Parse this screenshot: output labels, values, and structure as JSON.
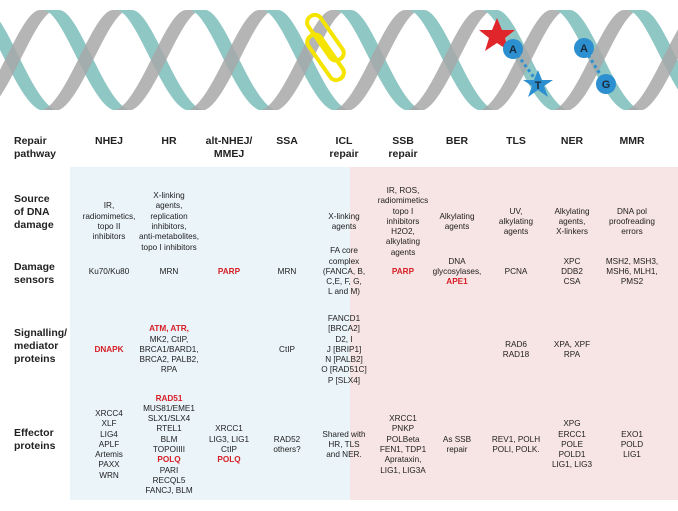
{
  "helix": {
    "colors": {
      "teal": "#8fc7c5",
      "grey": "#a8a8a8",
      "yellow": "#f5e400",
      "star": "#e1262b",
      "bubble": "#2b8fd0"
    },
    "lesion_icons": [
      "yellow-chain-icon",
      "red-star-icon",
      "blue-star-icon"
    ],
    "bases_left": {
      "top": "A",
      "bottom": "T"
    },
    "bases_right": {
      "top": "A",
      "bottom": "G"
    }
  },
  "header": {
    "row_label": "Repair\npathway",
    "columns": [
      "NHEJ",
      "HR",
      "alt-NHEJ/\nMMEJ",
      "SSA",
      "ICL\nrepair",
      "SSB\nrepair",
      "BER",
      "TLS",
      "NER",
      "MMR"
    ]
  },
  "rows": [
    {
      "label": "Source\nof DNA\ndamage",
      "cells": [
        "IR,\nradiomimetics,\ntopo II\ninhibitors",
        "X-linking\nagents,\nreplication\ninhibitors,\nanti-metabolites,\ntopo I inhibitors",
        "",
        "",
        "X-linking\nagents",
        "IR, ROS,\nradiomimetics\ntopo I\ninhibitors\nH2O2,\nalkylating\nagents",
        "Alkylating\nagents",
        "UV,\nalkylating\nagents",
        "Alkylating\nagents,\nX-linkers",
        "DNA pol\nproofreading\nerrors"
      ]
    },
    {
      "label": "Damage\nsensors",
      "cells": [
        "Ku70/Ku80",
        "MRN",
        "PARP",
        "MRN",
        "FA core\ncomplex\n(FANCA, B,\nC,E, F, G,\nL and M)",
        "PARP",
        "DNA\nglycosylases,\nAPE1",
        "PCNA",
        "XPC\nDDB2\nCSA",
        "MSH2, MSH3,\nMSH6, MLH1,\nPMS2"
      ]
    },
    {
      "label": "Signalling/\nmediator\nproteins",
      "cells": [
        "DNAPK",
        "ATM, ATR,\nMK2, CtIP,\nBRCA1/BARD1,\nBRCA2, PALB2,\nRPA",
        "",
        "CtIP",
        "FANCD1\n[BRCA2]\nD2, I\nJ [BRIP1]\nN [PALB2]\nO [RAD51C]\nP [SLX4]",
        "",
        "",
        "RAD6\nRAD18",
        "XPA, XPF\nRPA",
        ""
      ]
    },
    {
      "label": "Effector\nproteins",
      "cells": [
        "XRCC4\nXLF\nLIG4\nAPLF\nArtemis\nPAXX\nWRN",
        "RAD51\nMUS81/EME1\nSLX1/SLX4\nRTEL1\nBLM\nTOPOIIII\nPOLQ\nPARI\nRECQL5\nFANCJ, BLM",
        "XRCC1\nLIG3, LIG1\nCtIP\nPOLQ",
        "RAD52\nothers?",
        "Shared with\nHR, TLS\nand NER.",
        "XRCC1\nPNKP\nPOLBeta\nFEN1, TDP1\nAprataxin,\nLIG1, LIG3A",
        "As SSB\nrepair",
        "REV1, POLH\nPOLI, POLK.",
        "XPG\nERCC1\nPOLE\nPOLD1\nLIG1, LIG3",
        "EXO1\nPOLD\nLIG1"
      ]
    }
  ]
}
